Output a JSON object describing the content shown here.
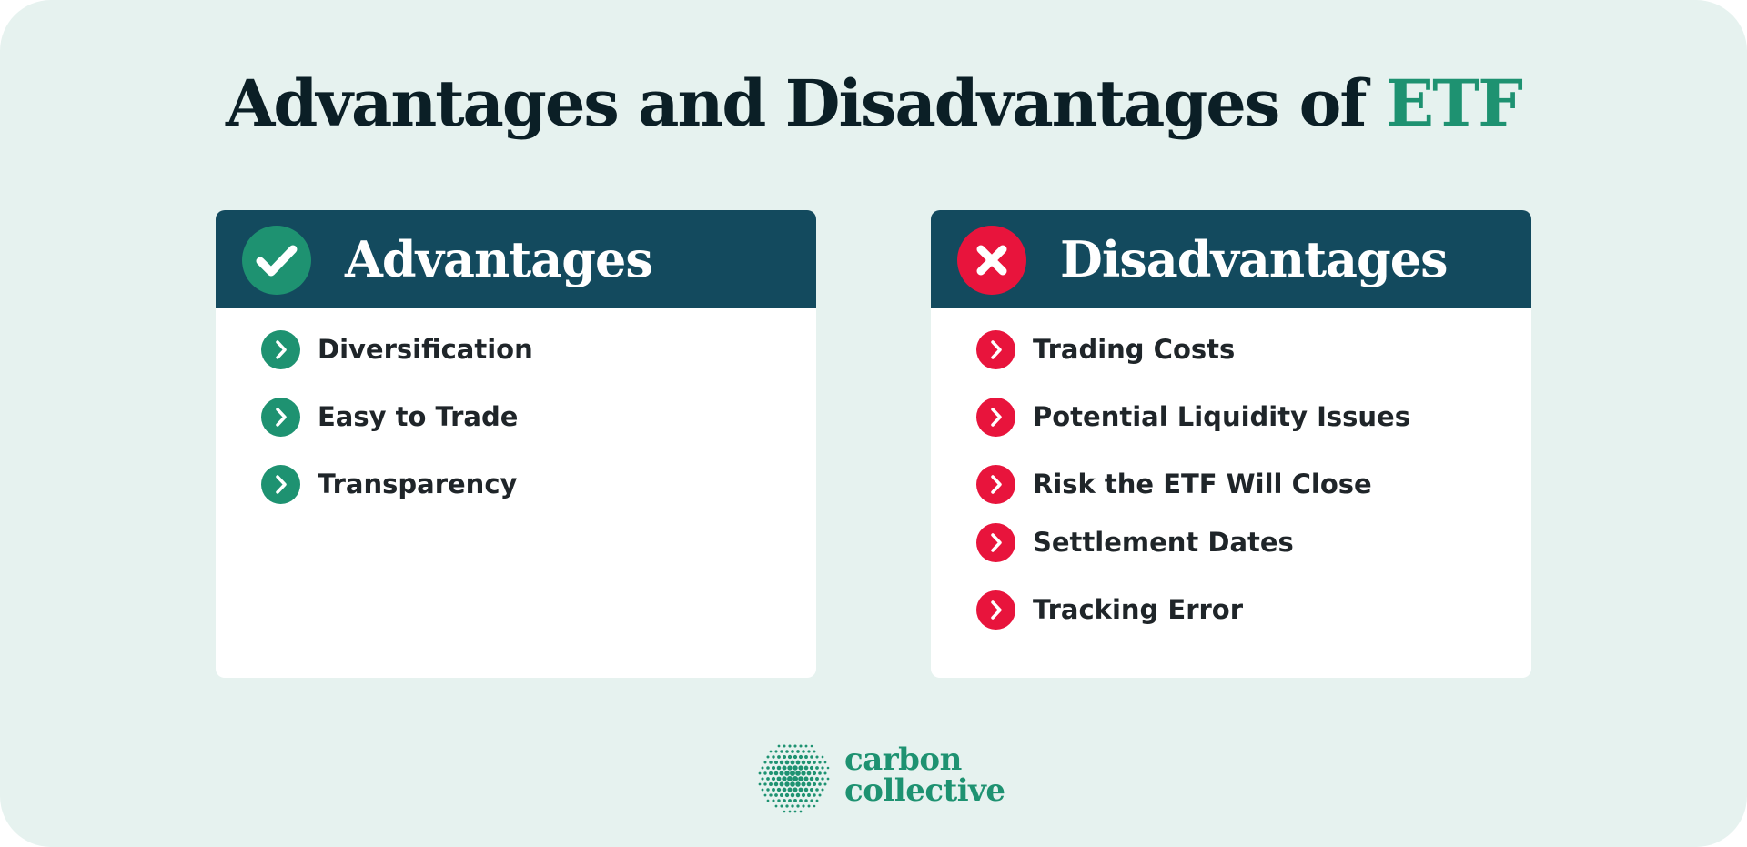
{
  "title": {
    "main": "Advantages and Disadvantages of ",
    "accent": "ETF"
  },
  "advantages": {
    "heading": "Advantages",
    "header_icon": "checkmark-icon",
    "bullet_icon": "chevron-right-icon",
    "color": "#1e9271",
    "items": [
      "Diversification",
      "Easy to Trade",
      "Transparency"
    ]
  },
  "disadvantages": {
    "heading": "Disadvantages",
    "header_icon": "x-mark-icon",
    "bullet_icon": "chevron-right-icon",
    "color": "#e8143c",
    "items": [
      "Trading Costs",
      "Potential Liquidity Issues",
      "Risk the ETF Will Close",
      "Settlement Dates",
      "Tracking Error"
    ]
  },
  "header_color": "#134a5e",
  "background_color": "#e6f2ef",
  "logo": {
    "line1": "carbon",
    "line2": "collective",
    "color": "#1e9271"
  }
}
